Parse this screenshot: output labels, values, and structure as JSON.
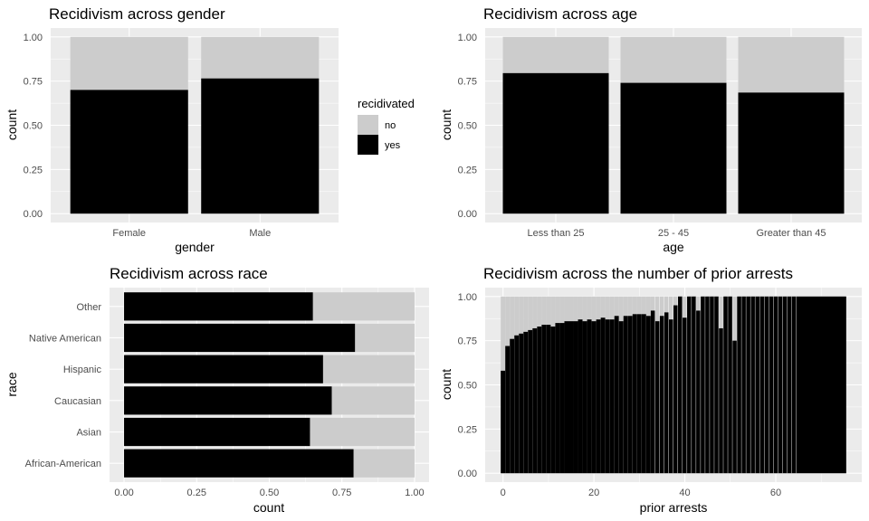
{
  "legend": {
    "title": "recidivated",
    "items": [
      {
        "label": "no",
        "color": "#cccccc"
      },
      {
        "label": "yes",
        "color": "#000000"
      }
    ]
  },
  "chart_data": [
    {
      "type": "bar",
      "stacked": "fill",
      "title": "Recidivism across gender",
      "xlabel": "gender",
      "ylabel": "count",
      "ylim": [
        0,
        1
      ],
      "yticks": [
        "0.00",
        "0.25",
        "0.50",
        "0.75",
        "1.00"
      ],
      "categories": [
        "Female",
        "Male"
      ],
      "series": [
        {
          "name": "yes",
          "values": [
            0.7,
            0.765
          ]
        },
        {
          "name": "no",
          "values": [
            0.3,
            0.235
          ]
        }
      ]
    },
    {
      "type": "bar",
      "stacked": "fill",
      "title": "Recidivism across age",
      "xlabel": "age",
      "ylabel": "count",
      "ylim": [
        0,
        1
      ],
      "yticks": [
        "0.00",
        "0.25",
        "0.50",
        "0.75",
        "1.00"
      ],
      "categories": [
        "Less than 25",
        "25 - 45",
        "Greater than 45"
      ],
      "series": [
        {
          "name": "yes",
          "values": [
            0.795,
            0.74,
            0.685
          ]
        },
        {
          "name": "no",
          "values": [
            0.205,
            0.26,
            0.315
          ]
        }
      ]
    },
    {
      "type": "bar",
      "orientation": "horizontal",
      "stacked": "fill",
      "title": "Recidivism across race",
      "xlabel": "count",
      "ylabel": "race",
      "xlim": [
        0,
        1
      ],
      "xticks": [
        "0.00",
        "0.25",
        "0.50",
        "0.75",
        "1.00"
      ],
      "categories": [
        "African-American",
        "Asian",
        "Caucasian",
        "Hispanic",
        "Native American",
        "Other"
      ],
      "series": [
        {
          "name": "yes",
          "values": [
            0.79,
            0.64,
            0.715,
            0.685,
            0.795,
            0.65
          ]
        },
        {
          "name": "no",
          "values": [
            0.21,
            0.36,
            0.285,
            0.315,
            0.205,
            0.35
          ]
        }
      ]
    },
    {
      "type": "bar",
      "stacked": "fill",
      "title": "Recidivism across the number of prior arrests",
      "xlabel": "prior arrests",
      "ylabel": "count",
      "ylim": [
        0,
        1
      ],
      "yticks": [
        "0.00",
        "0.25",
        "0.50",
        "0.75",
        "1.00"
      ],
      "xlim": [
        -0.5,
        75.5
      ],
      "xticks": [
        0,
        20,
        40,
        60
      ],
      "x": [
        0,
        1,
        2,
        3,
        4,
        5,
        6,
        7,
        8,
        9,
        10,
        11,
        12,
        13,
        14,
        15,
        16,
        17,
        18,
        19,
        20,
        21,
        22,
        23,
        24,
        25,
        26,
        27,
        28,
        29,
        30,
        31,
        32,
        33,
        34,
        35,
        36,
        37,
        38,
        39,
        40,
        41,
        42,
        43,
        44,
        45,
        46,
        47,
        48,
        49,
        50,
        51,
        52,
        53,
        54,
        55,
        56,
        57,
        58,
        59,
        60,
        61,
        62,
        63,
        64,
        75
      ],
      "series": [
        {
          "name": "yes",
          "values": [
            0.58,
            0.72,
            0.76,
            0.78,
            0.79,
            0.8,
            0.81,
            0.82,
            0.83,
            0.84,
            0.84,
            0.83,
            0.85,
            0.85,
            0.86,
            0.86,
            0.86,
            0.87,
            0.86,
            0.87,
            0.86,
            0.87,
            0.88,
            0.87,
            0.87,
            0.89,
            0.86,
            0.89,
            0.89,
            0.9,
            0.9,
            0.9,
            0.89,
            0.92,
            0.86,
            0.89,
            0.91,
            0.87,
            0.95,
            1.0,
            0.88,
            1.0,
            1.0,
            0.92,
            1.0,
            1.0,
            1.0,
            1.0,
            0.82,
            1.0,
            1.0,
            0.75,
            1.0,
            1.0,
            1.0,
            1.0,
            1.0,
            1.0,
            1.0,
            1.0,
            1.0,
            1.0,
            1.0,
            1.0,
            1.0,
            1.0
          ]
        }
      ]
    }
  ]
}
